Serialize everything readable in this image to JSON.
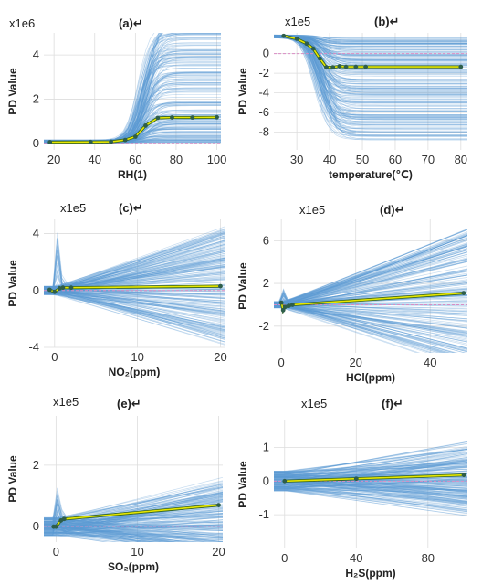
{
  "colors": {
    "ice": "#5b9bd5",
    "pd_line": "#e6e600",
    "pd_edge": "#2f5f1f",
    "marker": "#2e5e4a",
    "zero_line": "#d98cc4",
    "grid": "#dddddd",
    "axis": "#333333"
  },
  "chart_data": [
    {
      "type": "line",
      "panel_label": "(a)↵",
      "scale_label": "x1e6",
      "xlabel": "RH(1)",
      "ylabel": "PD Value",
      "xlim": [
        15,
        102
      ],
      "ylim": [
        -0.3,
        5.0
      ],
      "xticks": [
        20,
        40,
        60,
        80,
        100
      ],
      "yticks": [
        0,
        2,
        4
      ],
      "ice_shape": "sigmoid",
      "ice_params": {
        "cx": 64,
        "w": 3,
        "maxv": 5.5,
        "ymin": -0.1
      },
      "series": [
        {
          "values": [
            [
              18,
              0.05
            ],
            [
              38,
              0.06
            ],
            [
              48,
              0.07
            ],
            [
              55,
              0.15
            ],
            [
              60,
              0.3
            ],
            [
              65,
              0.8
            ],
            [
              71,
              1.15
            ],
            [
              78,
              1.17
            ],
            [
              88,
              1.17
            ],
            [
              100,
              1.18
            ]
          ]
        }
      ]
    },
    {
      "type": "line",
      "panel_label": "(b)↵",
      "scale_label": "x1e5",
      "xlabel": "temperature(℃)",
      "ylabel": "PD Value",
      "xlim": [
        23,
        82
      ],
      "ylim": [
        -9.8,
        2.1
      ],
      "xticks": [
        30,
        40,
        50,
        60,
        70,
        80
      ],
      "yticks": [
        0,
        -2,
        -4,
        -6,
        -8
      ],
      "ice_shape": "drop",
      "ice_params": {
        "cx": 37,
        "w": 2,
        "minv": -10,
        "ymax": 2
      },
      "series": [
        {
          "values": [
            [
              26,
              1.8
            ],
            [
              30,
              1.5
            ],
            [
              33,
              1.0
            ],
            [
              35,
              0.5
            ],
            [
              37,
              -0.5
            ],
            [
              39,
              -1.4
            ],
            [
              41,
              -1.4
            ],
            [
              43,
              -1.3
            ],
            [
              45,
              -1.35
            ],
            [
              48,
              -1.35
            ],
            [
              51,
              -1.35
            ],
            [
              80,
              -1.35
            ]
          ]
        }
      ]
    },
    {
      "type": "line",
      "panel_label": "(c)↵",
      "scale_label": "x1e5",
      "xlabel": "NO₂(ppm)",
      "ylabel": "PD Value",
      "xlim": [
        -1.3,
        20.5
      ],
      "ylim": [
        -4.0,
        5.0
      ],
      "xticks": [
        0,
        10,
        20
      ],
      "yticks": [
        4,
        0,
        -4
      ],
      "ice_shape": "fan",
      "ice_params": {
        "x0": 0,
        "spike": 12,
        "spread": 8,
        "ymin": -4
      },
      "series": [
        {
          "values": [
            [
              -0.6,
              0.05
            ],
            [
              0,
              -0.1
            ],
            [
              0.6,
              0.15
            ],
            [
              1,
              0.2
            ],
            [
              2,
              0.2
            ],
            [
              20,
              0.3
            ]
          ]
        }
      ]
    },
    {
      "type": "line",
      "panel_label": "(d)↵",
      "scale_label": "x1e5",
      "xlabel": "HCl(ppm)",
      "ylabel": "PD Value",
      "xlim": [
        -2,
        50
      ],
      "ylim": [
        -4.5,
        8.0
      ],
      "xticks": [
        0,
        20,
        40
      ],
      "yticks": [
        6,
        2,
        -2
      ],
      "ice_shape": "fan",
      "ice_params": {
        "x0": 0,
        "spike": 9,
        "spread": 13,
        "ymin": -4.5
      },
      "series": [
        {
          "values": [
            [
              0,
              0.2
            ],
            [
              0.5,
              -0.5
            ],
            [
              1,
              -0.2
            ],
            [
              2,
              -0.1
            ],
            [
              3,
              0
            ],
            [
              49,
              1.1
            ]
          ]
        }
      ]
    },
    {
      "type": "line",
      "panel_label": "(e)↵",
      "scale_label": "x1e5",
      "xlabel": "SO₂(ppm)",
      "ylabel": "PD Value",
      "xlim": [
        -1.5,
        20.5
      ],
      "ylim": [
        -0.5,
        3.6
      ],
      "xticks": [
        0,
        10,
        20
      ],
      "yticks": [
        0,
        2
      ],
      "ice_shape": "fan",
      "ice_params": {
        "x0": 0,
        "spike": 3,
        "spread": 2.5,
        "ymin": -0.45
      },
      "series": [
        {
          "values": [
            [
              -0.3,
              0
            ],
            [
              0,
              0
            ],
            [
              0.6,
              0.2
            ],
            [
              1,
              0.25
            ],
            [
              20,
              0.7
            ]
          ]
        }
      ]
    },
    {
      "type": "line",
      "panel_label": "(f)↵",
      "scale_label": "x1e5",
      "xlabel": "H₂S(ppm)",
      "ylabel": "PD Value",
      "xlim": [
        -6,
        102
      ],
      "ylim": [
        -2.0,
        1.8
      ],
      "xticks": [
        0,
        40,
        80
      ],
      "yticks": [
        1,
        0,
        -1
      ],
      "ice_shape": "fan",
      "ice_params": {
        "x0": 0,
        "spike": 1.6,
        "spread": 1.8,
        "ymin": -2.0
      },
      "series": [
        {
          "values": [
            [
              0,
              0
            ],
            [
              40,
              0.07
            ],
            [
              100,
              0.18
            ]
          ]
        }
      ]
    }
  ]
}
